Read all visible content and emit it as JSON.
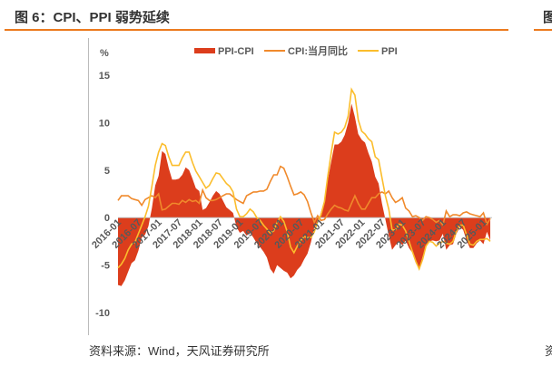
{
  "title": "图 6：CPI、PPI 弱势延续",
  "next_title_fragment": "图",
  "source": "资料来源：Wind，天风证券研究所",
  "next_source_fragment": "资",
  "chart_data": {
    "type": "line",
    "ylabel": "%",
    "ylim": [
      -10,
      15
    ],
    "yticks": [
      15,
      10,
      5,
      0,
      -5,
      -10
    ],
    "xtick_labels": [
      "2016-01",
      "2016-07",
      "2017-01",
      "2017-07",
      "2018-01",
      "2018-07",
      "2019-01",
      "2019-07",
      "2020-01",
      "2020-07",
      "2021-01",
      "2021-07",
      "2022-01",
      "2022-07",
      "2023-01",
      "2023-07",
      "2024-01",
      "2024-07",
      "2025-01"
    ],
    "x_start": "2016-01",
    "x_end": "2025-03",
    "legend_position": "top",
    "grid": false,
    "colors": {
      "ppi_cpi": "#dc3d1c",
      "cpi": "#f08a2c",
      "ppi": "#fbbd2c"
    },
    "series": [
      {
        "name": "PPI-CPI",
        "type": "area",
        "values": [
          -7.1,
          -7.2,
          -6.6,
          -5.7,
          -4.8,
          -4.5,
          -3.5,
          -2.1,
          -1.8,
          -0.9,
          1.0,
          3.4,
          4.4,
          7.0,
          6.7,
          5.2,
          4.0,
          4.0,
          4.1,
          4.5,
          5.3,
          5.0,
          4.1,
          3.1,
          2.8,
          0.8,
          1.0,
          1.6,
          2.3,
          2.8,
          2.5,
          1.8,
          1.1,
          0.8,
          0.5,
          -1.0,
          -1.6,
          -1.4,
          -1.9,
          -1.6,
          -2.1,
          -2.7,
          -3.1,
          -3.6,
          -4.2,
          -5.4,
          -5.9,
          -5.0,
          -5.3,
          -5.6,
          -5.8,
          -6.4,
          -6.1,
          -5.5,
          -5.1,
          -4.4,
          -3.8,
          -2.6,
          -1.0,
          -0.6,
          0.6,
          1.9,
          4.0,
          5.9,
          7.7,
          7.7,
          8.0,
          8.7,
          10.0,
          12.0,
          10.6,
          8.8,
          8.2,
          7.9,
          6.8,
          5.9,
          4.3,
          3.6,
          1.5,
          -0.2,
          -1.9,
          -3.4,
          -2.9,
          -2.5,
          -2.9,
          -2.4,
          -3.2,
          -3.7,
          -4.8,
          -5.4,
          -4.1,
          -3.1,
          -2.5,
          -2.4,
          -2.5,
          -2.4,
          -1.7,
          -3.4,
          -2.9,
          -2.8,
          -1.7,
          -1.0,
          -1.3,
          -2.4,
          -3.2,
          -3.2,
          -2.7,
          -2.4,
          -2.8,
          -1.5,
          -2.4
        ]
      },
      {
        "name": "CPI:当月同比",
        "type": "line",
        "values": [
          1.8,
          2.3,
          2.3,
          2.3,
          2.0,
          1.9,
          1.8,
          1.3,
          1.9,
          2.1,
          2.3,
          2.1,
          2.5,
          0.8,
          0.9,
          1.2,
          1.5,
          1.5,
          1.4,
          1.8,
          1.6,
          1.9,
          1.7,
          1.8,
          1.5,
          2.9,
          2.1,
          1.8,
          1.8,
          1.9,
          2.1,
          2.3,
          2.5,
          2.5,
          2.2,
          1.9,
          1.7,
          1.5,
          2.3,
          2.5,
          2.7,
          2.7,
          2.8,
          2.8,
          3.0,
          3.8,
          4.5,
          4.5,
          5.4,
          5.2,
          4.3,
          3.3,
          2.4,
          2.5,
          2.7,
          2.4,
          1.7,
          0.5,
          -0.5,
          0.2,
          -0.3,
          -0.2,
          0.4,
          0.9,
          1.3,
          1.1,
          1.0,
          0.8,
          0.7,
          1.5,
          2.3,
          1.5,
          0.9,
          0.9,
          1.5,
          2.1,
          2.1,
          2.5,
          2.7,
          2.5,
          2.8,
          2.1,
          1.6,
          1.8,
          2.1,
          1.0,
          0.7,
          0.1,
          0.2,
          0.0,
          -0.3,
          0.1,
          0.0,
          -0.2,
          -0.5,
          -0.3,
          -0.8,
          0.7,
          0.1,
          0.3,
          0.3,
          0.2,
          0.5,
          0.6,
          0.4,
          0.3,
          0.2,
          0.1,
          0.5,
          -0.7,
          -0.1
        ]
      },
      {
        "name": "PPI",
        "type": "line",
        "values": [
          -5.3,
          -4.9,
          -4.3,
          -3.4,
          -2.8,
          -2.6,
          -1.7,
          -0.8,
          0.1,
          1.2,
          3.3,
          5.5,
          6.9,
          7.8,
          7.6,
          6.4,
          5.5,
          5.5,
          5.5,
          6.3,
          6.9,
          6.9,
          5.8,
          4.9,
          4.3,
          3.7,
          3.1,
          3.4,
          4.1,
          4.7,
          4.6,
          4.1,
          3.6,
          3.3,
          2.7,
          0.9,
          0.1,
          0.1,
          0.4,
          0.9,
          0.6,
          0.0,
          -0.3,
          -0.8,
          -1.2,
          -1.6,
          -1.4,
          -0.5,
          0.1,
          -0.4,
          -1.5,
          -3.1,
          -3.7,
          -3.0,
          -2.4,
          -2.0,
          -2.1,
          -2.1,
          -1.5,
          -0.4,
          0.3,
          1.7,
          4.4,
          6.8,
          9.0,
          8.8,
          9.0,
          9.5,
          10.7,
          13.5,
          12.9,
          10.3,
          9.1,
          8.8,
          8.3,
          8.0,
          6.4,
          6.1,
          4.2,
          2.3,
          0.9,
          -1.3,
          -1.3,
          -0.7,
          -0.8,
          -1.4,
          -2.5,
          -3.6,
          -4.6,
          -5.4,
          -4.4,
          -3.0,
          -2.5,
          -2.6,
          -3.0,
          -2.7,
          -2.5,
          -2.7,
          -2.8,
          -2.5,
          -1.4,
          -0.8,
          -0.8,
          -1.8,
          -2.8,
          -2.9,
          -2.5,
          -2.3,
          -2.3,
          -2.2,
          -2.5
        ]
      }
    ]
  }
}
